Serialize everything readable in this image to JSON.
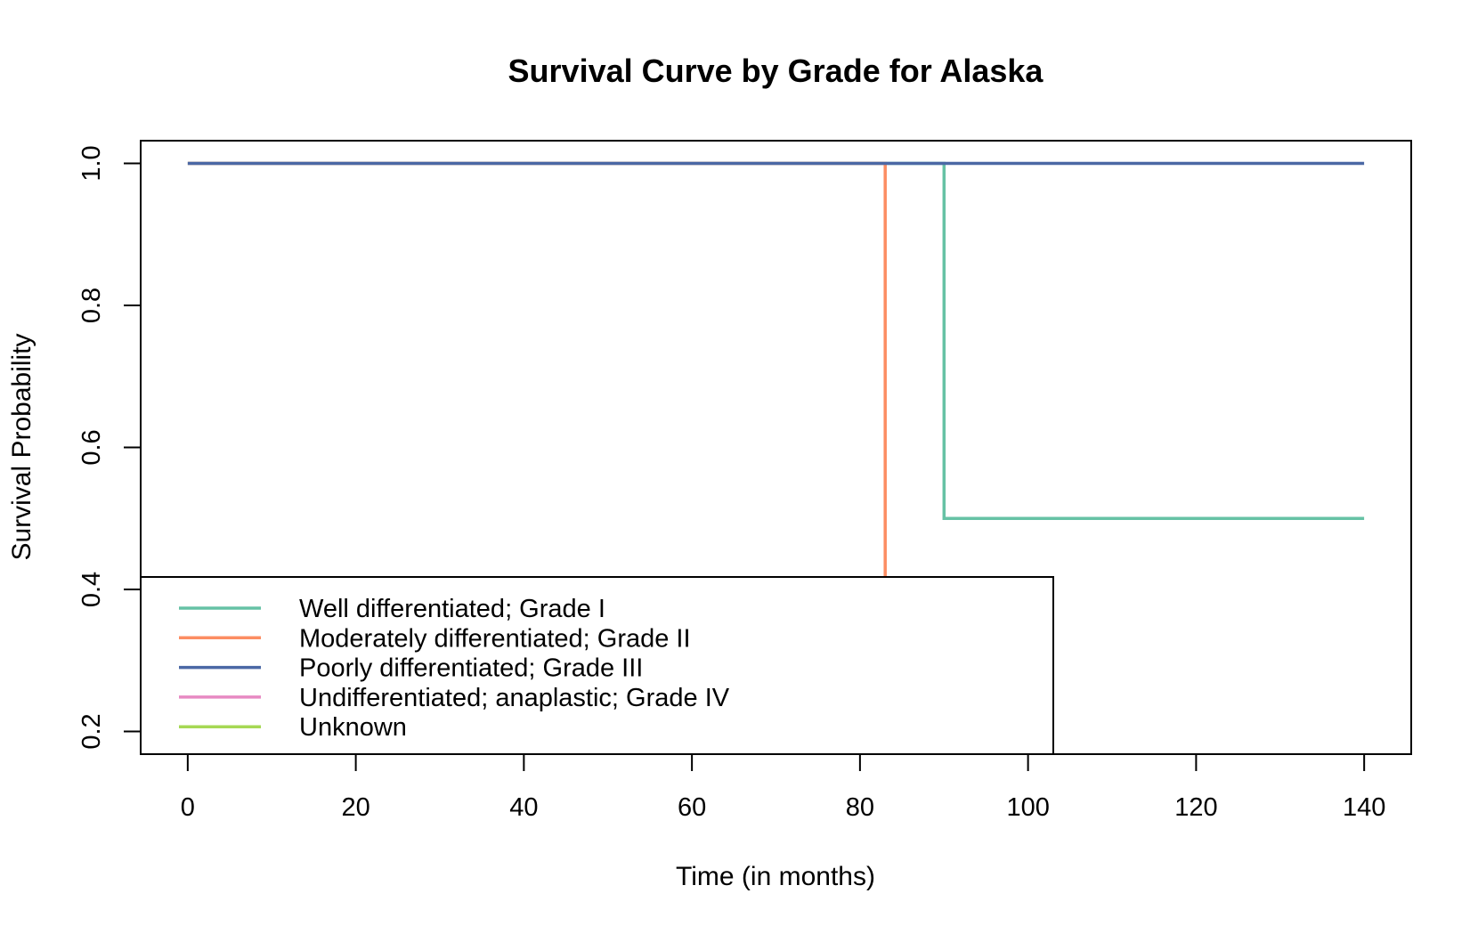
{
  "chart_data": {
    "type": "line",
    "title": "Survival Curve by Grade for Alaska",
    "xlabel": "Time (in months)",
    "ylabel": "Survival Probability",
    "xlim": [
      -5.6,
      145.6
    ],
    "ylim": [
      0.168,
      1.032
    ],
    "x_ticks": [
      0,
      20,
      40,
      60,
      80,
      100,
      120,
      140
    ],
    "y_ticks": [
      0.2,
      0.4,
      0.6,
      0.8,
      1.0
    ],
    "x_tick_labels": [
      "0",
      "20",
      "40",
      "60",
      "80",
      "100",
      "120",
      "140"
    ],
    "y_tick_labels": [
      "0.2",
      "0.4",
      "0.6",
      "0.8",
      "1.0"
    ],
    "grid": false,
    "legend_position": "bottom-left",
    "series": [
      {
        "name": "Well differentiated; Grade I",
        "color": "#66c2a5",
        "step_points": [
          [
            0,
            1.0
          ],
          [
            90,
            1.0
          ],
          [
            90,
            0.5
          ],
          [
            140,
            0.5
          ]
        ]
      },
      {
        "name": "Moderately differentiated; Grade II",
        "color": "#fc8d62",
        "step_points": [
          [
            0,
            1.0
          ],
          [
            83,
            1.0
          ],
          [
            83,
            0.0
          ]
        ]
      },
      {
        "name": "Poorly differentiated; Grade III",
        "color": "#4b68a5",
        "step_points": [
          [
            0,
            1.0
          ],
          [
            140,
            1.0
          ]
        ]
      },
      {
        "name": "Undifferentiated; anaplastic; Grade IV",
        "color": "#e78ac3",
        "step_points": []
      },
      {
        "name": "Unknown",
        "color": "#a6d854",
        "step_points": []
      }
    ]
  }
}
